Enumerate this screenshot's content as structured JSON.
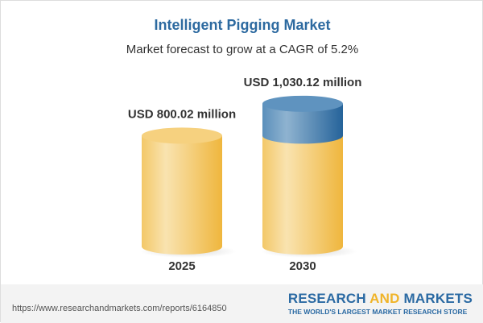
{
  "title": "Intelligent Pigging Market",
  "subtitle": "Market forecast to grow at a CAGR of 5.2%",
  "chart_data": {
    "type": "bar",
    "style": "3d-cylinder",
    "categories": [
      "2025",
      "2030"
    ],
    "values": [
      800.02,
      1030.12
    ],
    "data_labels": [
      "USD 800.02 million",
      "USD 1,030.12 million"
    ],
    "unit": "USD million",
    "colors": {
      "base": "#f2c45a",
      "growth": "#3f7fb0"
    }
  },
  "footer": {
    "url": "https://www.researchandmarkets.com/reports/6164850",
    "brand_part1": "RESEARCH ",
    "brand_part2": "AND",
    "brand_part3": " MARKETS",
    "tagline": "THE WORLD'S LARGEST MARKET RESEARCH STORE"
  }
}
